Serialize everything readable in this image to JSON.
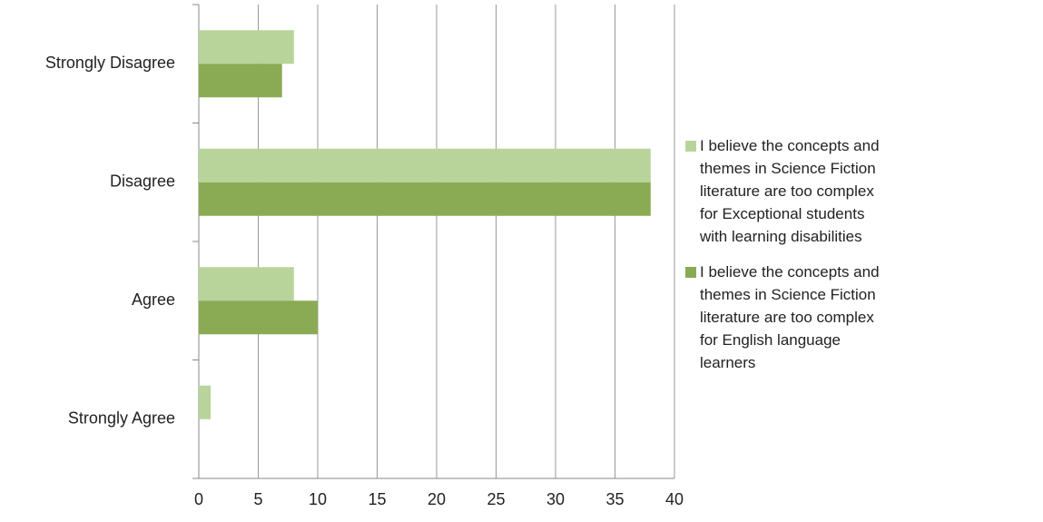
{
  "chart_data": {
    "type": "barh",
    "categories": [
      "Strongly Agree",
      "Agree",
      "Disagree",
      "Strongly Disagree"
    ],
    "series": [
      {
        "name": "I believe the concepts and themes in Science Fiction literature are too complex for Exceptional students with learning disabilities",
        "color": "#b8d49a",
        "values": [
          1,
          8,
          38,
          8
        ]
      },
      {
        "name": "I believe the concepts and themes in Science Fiction literature are too complex for English language learners",
        "color": "#8aab54",
        "values": [
          0,
          10,
          38,
          7
        ]
      }
    ],
    "xlim": [
      0,
      40
    ],
    "xticks": [
      0,
      5,
      10,
      15,
      20,
      25,
      30,
      35,
      40
    ],
    "grid": true,
    "legend": "right"
  }
}
